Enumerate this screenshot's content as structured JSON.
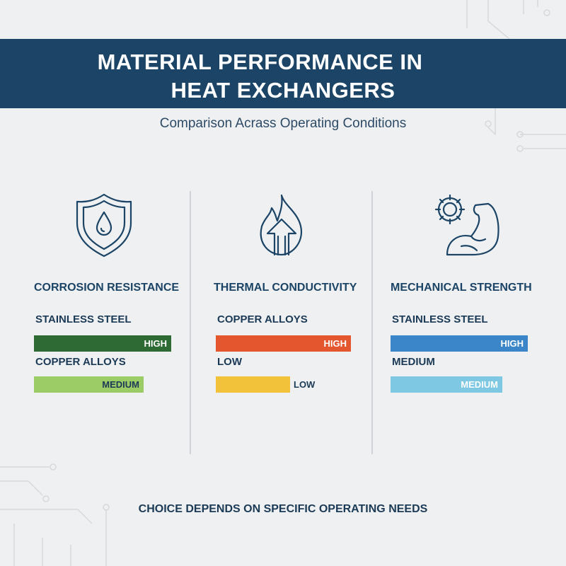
{
  "header": {
    "title_lines": [
      "MATERIAL PERFORMANCE IN",
      "HEAT EXCHANGERS"
    ],
    "subtitle": "Comparison Acrass Operating Conditions"
  },
  "columns": [
    {
      "heading": "CORROSION RESISTANCE",
      "rows": [
        {
          "label": "STAINLESS STEEL",
          "level": "HIGH"
        },
        {
          "label": "COPPER ALLOYS",
          "level": "MEDIUM"
        }
      ]
    },
    {
      "heading": "THERMAL CONDUCTIVITY",
      "rows": [
        {
          "label": "COPPER ALLOYS",
          "level": "HIGH"
        },
        {
          "label": "LOW",
          "level": "LOW"
        }
      ]
    },
    {
      "heading": "MECHANICAL STRENGTH",
      "rows": [
        {
          "label": "STAINLESS STEEL",
          "level": "HIGH"
        },
        {
          "label": "MEDIUM",
          "level": "MEDIUM"
        }
      ]
    }
  ],
  "footer": "CHOICE DEPENDS ON SPECIFIC OPERATING NEEDS"
}
